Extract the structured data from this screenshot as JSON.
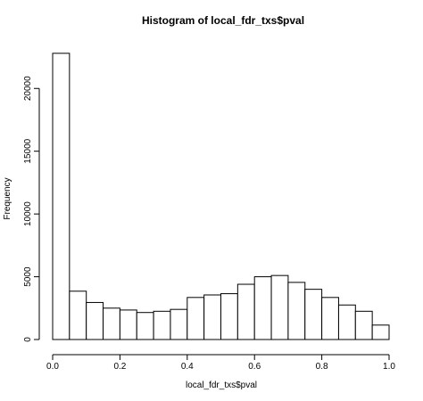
{
  "chart_data": {
    "type": "bar",
    "title": "Histogram of local_fdr_txs$pval",
    "xlabel": "local_fdr_txs$pval",
    "ylabel": "Frequency",
    "bin_width": 0.05,
    "bins": [
      [
        0.0,
        0.05
      ],
      [
        0.05,
        0.1
      ],
      [
        0.1,
        0.15
      ],
      [
        0.15,
        0.2
      ],
      [
        0.2,
        0.25
      ],
      [
        0.25,
        0.3
      ],
      [
        0.3,
        0.35
      ],
      [
        0.35,
        0.4
      ],
      [
        0.4,
        0.45
      ],
      [
        0.45,
        0.5
      ],
      [
        0.5,
        0.55
      ],
      [
        0.55,
        0.6
      ],
      [
        0.6,
        0.65
      ],
      [
        0.65,
        0.7
      ],
      [
        0.7,
        0.75
      ],
      [
        0.75,
        0.8
      ],
      [
        0.8,
        0.85
      ],
      [
        0.85,
        0.9
      ],
      [
        0.9,
        0.95
      ],
      [
        0.95,
        1.0
      ]
    ],
    "values": [
      22800,
      3850,
      2950,
      2500,
      2350,
      2150,
      2250,
      2400,
      3350,
      3550,
      3650,
      4400,
      5000,
      5100,
      4550,
      4000,
      3350,
      2750,
      2250,
      1150
    ],
    "xlim": [
      0,
      1
    ],
    "ylim": [
      0,
      23000
    ],
    "xticks": [
      0.0,
      0.2,
      0.4,
      0.6,
      0.8,
      1.0
    ],
    "xtick_labels": [
      "0.0",
      "0.2",
      "0.4",
      "0.6",
      "0.8",
      "1.0"
    ],
    "yticks": [
      0,
      5000,
      10000,
      15000,
      20000
    ],
    "ytick_labels": [
      "0",
      "5000",
      "10000",
      "15000",
      "20000"
    ],
    "grid": false
  }
}
